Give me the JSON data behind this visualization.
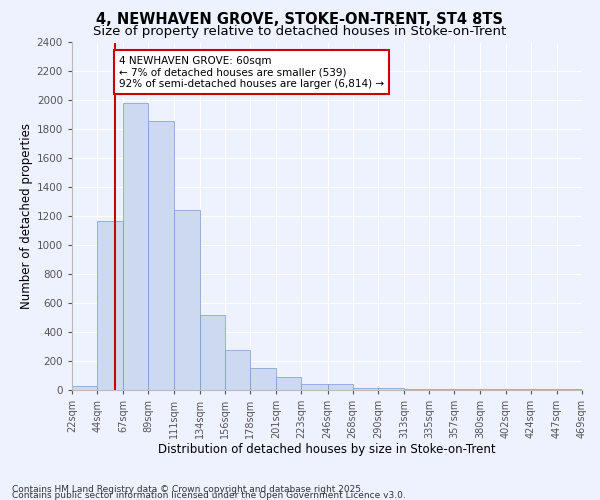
{
  "title": "4, NEWHAVEN GROVE, STOKE-ON-TRENT, ST4 8TS",
  "subtitle": "Size of property relative to detached houses in Stoke-on-Trent",
  "xlabel": "Distribution of detached houses by size in Stoke-on-Trent",
  "ylabel": "Number of detached properties",
  "bin_edges": [
    22,
    44,
    67,
    89,
    111,
    134,
    156,
    178,
    201,
    223,
    246,
    268,
    290,
    313,
    335,
    357,
    380,
    402,
    424,
    447,
    469
  ],
  "bar_heights": [
    25,
    1170,
    1980,
    1860,
    1240,
    520,
    275,
    150,
    90,
    40,
    40,
    15,
    15,
    5,
    5,
    5,
    5,
    5,
    5,
    5
  ],
  "bar_color": "#ccd9f0",
  "bar_edge_color": "#7799cc",
  "property_size": 60,
  "red_line_color": "#cc0000",
  "annotation_text": "4 NEWHAVEN GROVE: 60sqm\n← 7% of detached houses are smaller (539)\n92% of semi-detached houses are larger (6,814) →",
  "annotation_box_color": "#ffffff",
  "annotation_border_color": "#cc0000",
  "ylim": [
    0,
    2400
  ],
  "ytick_interval": 200,
  "background_color": "#eef2ff",
  "tick_labels": [
    "22sqm",
    "44sqm",
    "67sqm",
    "89sqm",
    "111sqm",
    "134sqm",
    "156sqm",
    "178sqm",
    "201sqm",
    "223sqm",
    "246sqm",
    "268sqm",
    "290sqm",
    "313sqm",
    "335sqm",
    "357sqm",
    "380sqm",
    "402sqm",
    "424sqm",
    "447sqm",
    "469sqm"
  ],
  "footer_line1": "Contains HM Land Registry data © Crown copyright and database right 2025.",
  "footer_line2": "Contains public sector information licensed under the Open Government Licence v3.0.",
  "title_fontsize": 10.5,
  "subtitle_fontsize": 9.5,
  "xlabel_fontsize": 8.5,
  "ylabel_fontsize": 8.5,
  "tick_fontsize": 7,
  "annotation_fontsize": 7.5,
  "footer_fontsize": 6.5
}
